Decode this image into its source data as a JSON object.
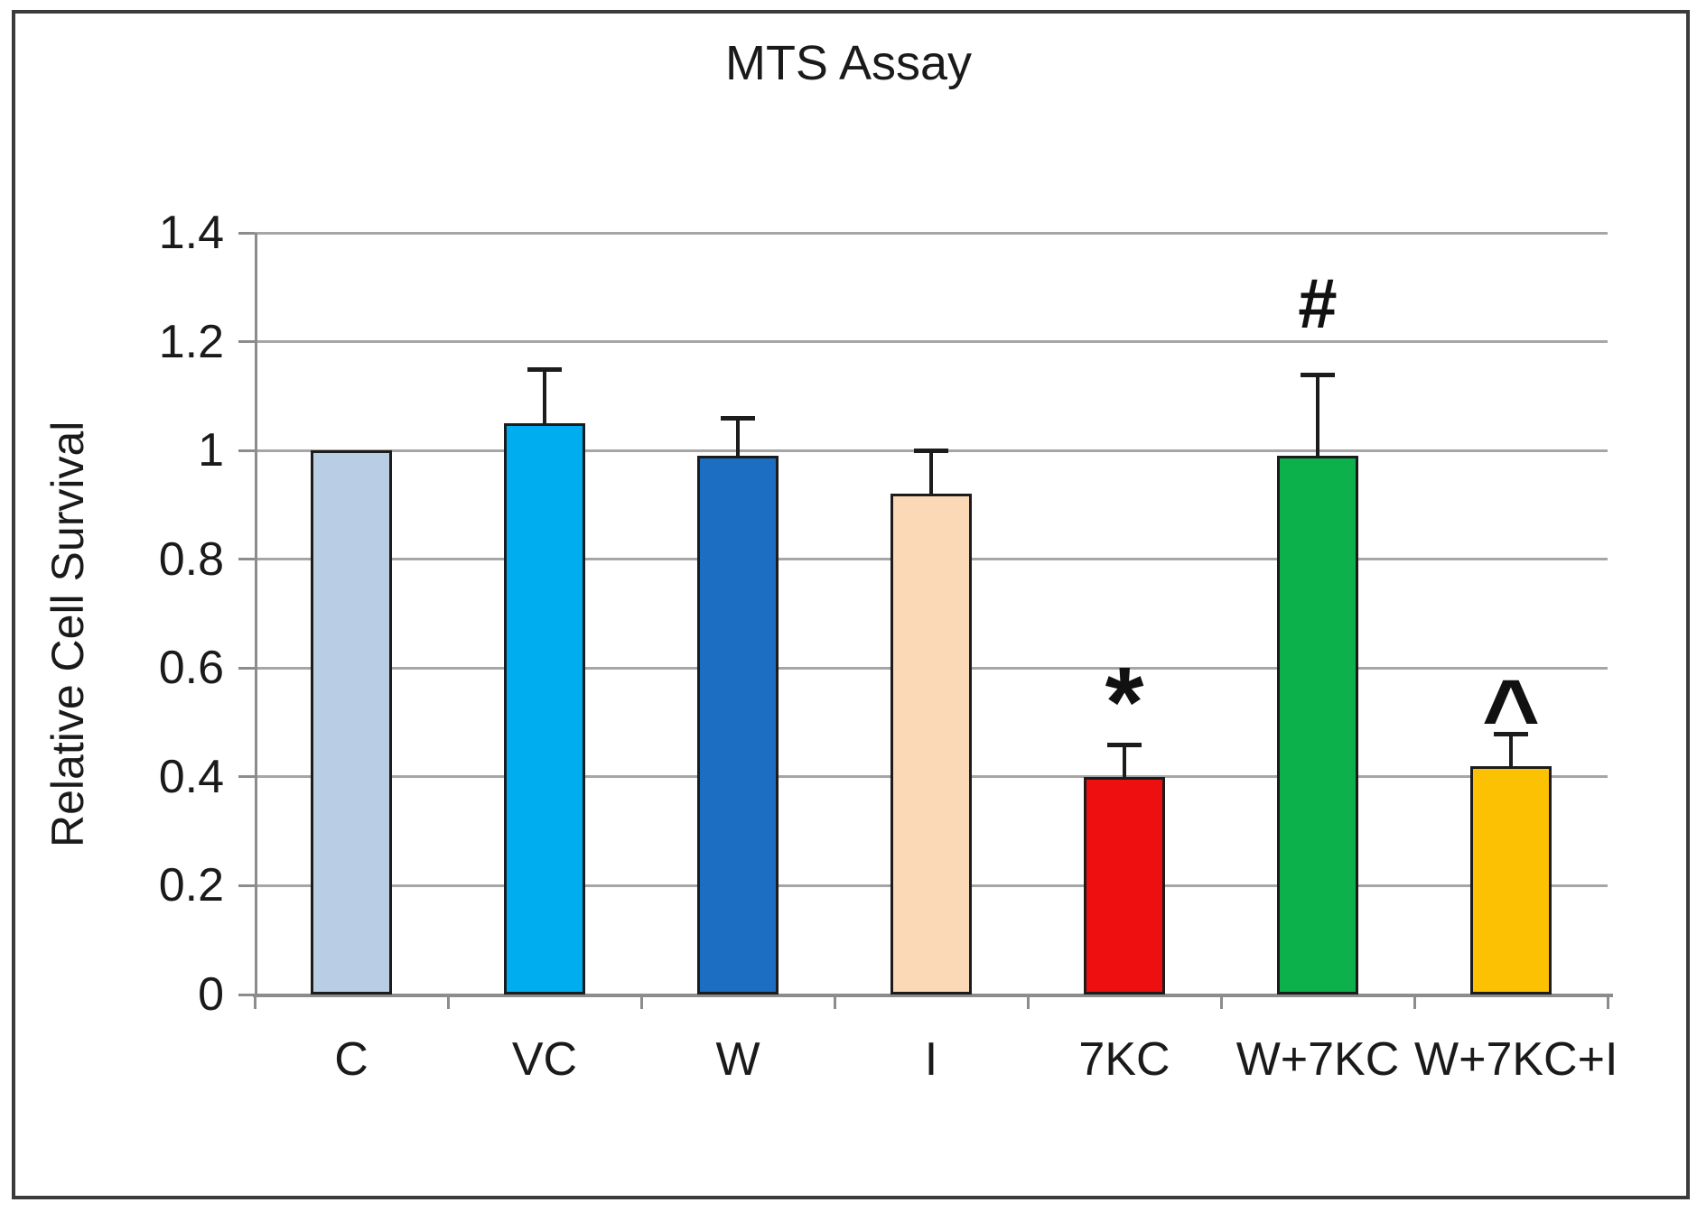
{
  "figure": {
    "title": "MTS Assay"
  },
  "chart_data": {
    "type": "bar",
    "title": "MTS Assay",
    "xlabel": "",
    "ylabel": "Relative Cell Survival",
    "ylim": [
      0,
      1.4
    ],
    "ytick_step": 0.2,
    "ytick_labels": [
      "0",
      "0.2",
      "0.4",
      "0.6",
      "0.8",
      "1",
      "1.2",
      "1.4"
    ],
    "grid": true,
    "legend": "none",
    "categories": [
      "C",
      "VC",
      "W",
      "I",
      "7KC",
      "W+7KC",
      "W+7KC+I"
    ],
    "values": [
      1.0,
      1.05,
      0.99,
      0.92,
      0.4,
      0.99,
      0.42
    ],
    "errors_plus": [
      0,
      0.1,
      0.07,
      0.08,
      0.06,
      0.15,
      0.06
    ],
    "bar_colors": [
      "#b9cde5",
      "#00aeef",
      "#1b6ec2",
      "#fcd9b6",
      "#ee1010",
      "#0cb14b",
      "#fdc104"
    ],
    "annotations": [
      {
        "category": "7KC",
        "symbol": "*",
        "y": 0.57
      },
      {
        "category": "W+7KC",
        "symbol": "#",
        "y": 1.27
      },
      {
        "category": "W+7KC+I",
        "symbol": "^",
        "y": 0.56
      }
    ],
    "colors": {
      "gridline": "#a6a6a6",
      "axis": "#8c8c8c",
      "bar_outline": "#1c1c1c",
      "frame_border": "#3b3b3b",
      "text": "#1a1a1a",
      "background": "#ffffff"
    }
  }
}
